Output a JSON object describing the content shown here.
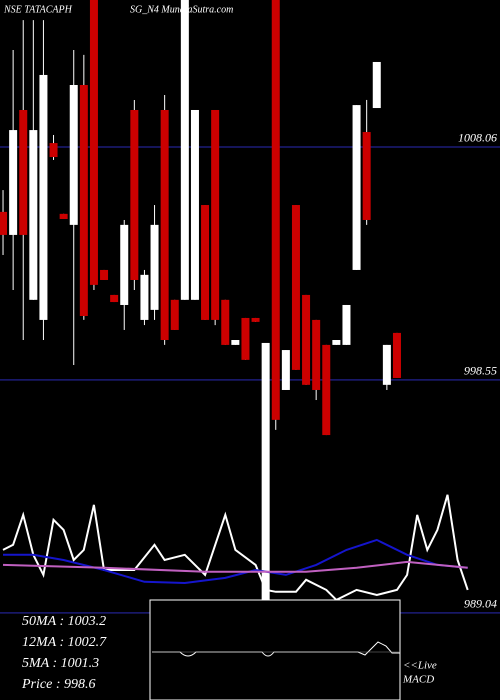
{
  "chart_data": {
    "type": "candlestick",
    "title": "NSE TATACAPH",
    "subtitle": "SG_N4 MunafaSutra.com",
    "open": [
      1005.41,
      1004.47,
      1009.57,
      1001.82,
      1001.0,
      1008.22,
      1005.33,
      1004.88,
      1010.59,
      1014.06,
      1003.04,
      1002.02,
      1001.61,
      1009.57,
      1001.0,
      1001.41,
      1009.57,
      1001.82,
      1001.82,
      1001.82,
      1005.69,
      1009.57,
      1001.82,
      999.98,
      1001.08,
      1001.08,
      989.57,
      1014.06,
      998.14,
      1005.69,
      1002.02,
      1001.0,
      999.98,
      999.98,
      999.98,
      1003.04,
      1008.67,
      1009.65,
      998.35,
      1000.47
    ],
    "high": [
      1006.3,
      1012.02,
      1013.24,
      1013.24,
      1013.24,
      1008.55,
      1005.33,
      1012.02,
      1011.82,
      1014.06,
      1003.04,
      1002.02,
      1005.08,
      1009.98,
      1003.04,
      1005.69,
      1010.18,
      1001.82,
      1014.06,
      1009.57,
      1005.69,
      1009.57,
      1001.82,
      1000.18,
      1001.08,
      1001.08,
      1000.06,
      1014.06,
      999.77,
      1005.69,
      1002.02,
      1001.0,
      999.98,
      1000.18,
      1001.61,
      1009.77,
      1009.98,
      1011.53,
      999.98,
      1000.47
    ],
    "low": [
      1003.65,
      1002.22,
      1000.18,
      1001.82,
      1000.18,
      1007.53,
      1005.12,
      999.16,
      1001.0,
      1002.22,
      1002.63,
      1001.73,
      1000.59,
      1002.22,
      1000.79,
      1001.0,
      999.98,
      1000.59,
      1001.82,
      1001.82,
      1001.0,
      1000.79,
      999.98,
      999.98,
      999.37,
      1000.92,
      989.16,
      996.51,
      998.14,
      998.96,
      998.35,
      997.73,
      996.3,
      999.98,
      999.98,
      1003.04,
      1004.88,
      1009.65,
      998.14,
      998.63
    ],
    "close": [
      1004.47,
      1008.75,
      1004.47,
      1008.75,
      1011.0,
      1007.65,
      1005.12,
      1010.59,
      1001.16,
      1002.43,
      1002.63,
      1001.73,
      1004.88,
      1002.63,
      1002.84,
      1004.88,
      1000.18,
      1000.59,
      1014.06,
      1009.57,
      1001.0,
      1001.0,
      999.98,
      1000.18,
      999.37,
      1000.92,
      1000.06,
      996.92,
      999.77,
      998.96,
      998.35,
      998.14,
      996.3,
      1000.18,
      1001.61,
      1009.77,
      1005.08,
      1011.53,
      999.98,
      998.63
    ],
    "up_color": "#ffffff",
    "down_color": "#cc0000",
    "lines": [
      {
        "color": "#ffffff",
        "x": [
          0,
          1,
          2,
          3,
          4,
          5,
          6,
          7,
          8,
          9,
          10,
          11,
          13,
          15,
          16,
          18,
          20,
          22,
          23,
          25,
          26,
          27,
          29,
          30,
          32,
          33,
          35,
          37,
          39,
          40,
          41,
          42,
          43,
          44,
          45,
          46
        ],
        "values": [
          991.61,
          991.82,
          993.04,
          991.41,
          990.59,
          992.84,
          992.43,
          991.2,
          991.61,
          993.45,
          990.79,
          990.79,
          990.79,
          991.82,
          991.2,
          991.41,
          990.59,
          993.04,
          991.61,
          991.0,
          989.98,
          989.9,
          989.9,
          990.39,
          989.98,
          989.57,
          989.98,
          989.77,
          989.98,
          990.59,
          993.04,
          991.61,
          992.43,
          993.86,
          991.2,
          989.98
        ]
      },
      {
        "color": "#1515cc",
        "x": [
          0,
          3,
          6,
          10,
          14,
          18,
          22,
          25,
          28,
          31,
          34,
          37,
          40,
          43,
          46
        ],
        "values": [
          991.41,
          991.41,
          991.2,
          990.79,
          990.31,
          990.26,
          990.47,
          990.79,
          990.59,
          991.0,
          991.61,
          992.02,
          991.41,
          991.0,
          990.88
        ]
      },
      {
        "color": "#c060c0",
        "x": [
          0,
          10,
          20,
          25,
          30,
          35,
          40,
          46
        ],
        "values": [
          991.0,
          990.88,
          990.72,
          990.72,
          990.72,
          990.88,
          991.12,
          990.88
        ]
      }
    ],
    "xlim": [
      -0.3,
      49.2
    ],
    "ylim": [
      988.75,
      1014.06
    ],
    "yticks": [
      1008.06,
      998.55,
      989.04
    ],
    "grid": true,
    "stats": [
      "50MA : 1003.2",
      "12MA : 1002.7",
      "5MA : 1001.3",
      "Price   : 998.6"
    ],
    "macd_label": [
      "<<Live",
      "MACD"
    ]
  }
}
